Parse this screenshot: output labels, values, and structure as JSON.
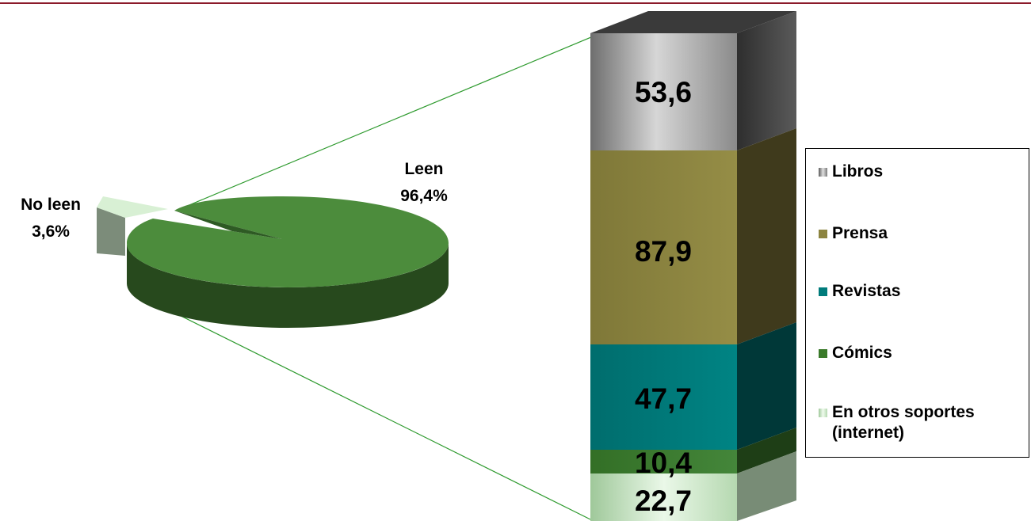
{
  "chart_data": [
    {
      "type": "pie",
      "slices": [
        {
          "label": "No leen",
          "value": 3.6,
          "display": "3,6%",
          "color": "#c8e8c4"
        },
        {
          "label": "Leen",
          "value": 96.4,
          "display": "96,4%",
          "color": "#4c8c3c"
        }
      ]
    },
    {
      "type": "bar",
      "stacked": true,
      "categories": [
        "Leen"
      ],
      "series": [
        {
          "name": "En otros soportes (internet)",
          "value": 22.7,
          "display": "22,7",
          "color": "#b8e0b0"
        },
        {
          "name": "Cómics",
          "value": 10.4,
          "display": "10,4",
          "color": "#3a7a2a"
        },
        {
          "name": "Revistas",
          "value": 47.7,
          "display": "47,7",
          "color": "#007b7b"
        },
        {
          "name": "Prensa",
          "value": 87.9,
          "display": "87,9",
          "color": "#8c8440"
        },
        {
          "name": "Libros",
          "value": 53.6,
          "display": "53,6",
          "color": "#a0a0a0"
        }
      ],
      "legend_position": "right"
    }
  ],
  "legend": {
    "items": [
      {
        "label": "Libros",
        "color": "#9a9a9a"
      },
      {
        "label": "Prensa",
        "color": "#8c8440"
      },
      {
        "label": "Revistas",
        "color": "#007b7b"
      },
      {
        "label": "Cómics",
        "color": "#3a7a2a"
      },
      {
        "label": "En otros soportes (internet)",
        "color": "#c8e8c4"
      }
    ]
  },
  "colors": {
    "top_rule": "#8b1a2a",
    "connector": "#2e9a2e"
  }
}
